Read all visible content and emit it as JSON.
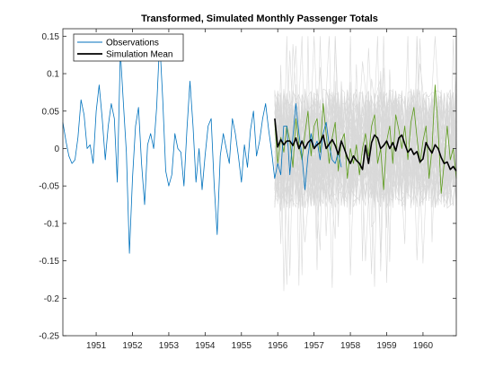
{
  "chart_data": {
    "type": "line",
    "title": "Transformed, Simulated Monthly Passenger Totals",
    "xlabel": "",
    "ylabel": "",
    "xlim": [
      1950.083,
      1960.917
    ],
    "ylim": [
      -0.25,
      0.16
    ],
    "x_ticks": [
      1951,
      1952,
      1953,
      1954,
      1955,
      1956,
      1957,
      1958,
      1959,
      1960
    ],
    "x_tick_labels": [
      "1951",
      "1952",
      "1953",
      "1954",
      "1955",
      "1956",
      "1957",
      "1958",
      "1959",
      "1960"
    ],
    "y_ticks": [
      -0.25,
      -0.2,
      -0.15,
      -0.1,
      -0.05,
      0,
      0.05,
      0.1,
      0.15
    ],
    "y_tick_labels": [
      "-0.25",
      "-0.2",
      "-0.15",
      "-0.1",
      "-0.05",
      "0",
      "0.05",
      "0.1",
      "0.15"
    ],
    "grid": false,
    "legend_position": "top-left",
    "legend": [
      "Observations",
      "Simulation Mean"
    ],
    "colors": {
      "observations": "#0072BD",
      "simulation_mean": "#000000",
      "simulations": "#D9D9D9",
      "highlighted_simulation": "#5B9A1A"
    },
    "series": [
      {
        "name": "Observations",
        "x_start": 1950.083,
        "x_step": 0.0833333,
        "values": [
          0.035,
          0.01,
          -0.01,
          -0.02,
          -0.015,
          0.015,
          0.065,
          0.045,
          0.0,
          0.005,
          -0.02,
          0.05,
          0.085,
          0.04,
          -0.015,
          0.03,
          0.06,
          0.04,
          -0.045,
          0.13,
          0.06,
          -0.005,
          -0.14,
          -0.04,
          0.03,
          0.055,
          -0.02,
          -0.075,
          0.005,
          0.02,
          0.0,
          0.055,
          0.145,
          0.065,
          -0.03,
          -0.05,
          -0.035,
          0.02,
          0.0,
          -0.005,
          -0.05,
          0.025,
          0.09,
          0.03,
          -0.045,
          0.0,
          -0.055,
          -0.01,
          0.03,
          0.04,
          -0.05,
          -0.115,
          -0.01,
          0.02,
          0.0,
          -0.02,
          0.04,
          0.02,
          -0.01,
          -0.045,
          0.005,
          -0.025,
          0.025,
          0.05,
          -0.01,
          0.01,
          0.04,
          0.06,
          0.025,
          -0.005,
          -0.04,
          -0.02,
          -0.035,
          0.03,
          0.03,
          -0.035,
          0.015,
          0.06,
          0.02,
          -0.01,
          -0.055,
          -0.01,
          0.02,
          0.0,
          0.01,
          -0.015,
          0.02,
          0.035,
          0.005,
          -0.015,
          -0.02,
          -0.005,
          -0.025
        ]
      },
      {
        "name": "Simulation Mean",
        "x_start": 1955.917,
        "x_step": 0.0833333,
        "values": [
          0.04,
          0.002,
          0.012,
          0.005,
          0.01,
          0.01,
          0.004,
          0.014,
          0.0,
          0.01,
          0.0,
          0.008,
          0.012,
          0.0,
          0.005,
          0.008,
          0.018,
          0.0,
          0.006,
          0.012,
          0.004,
          -0.008,
          0.01,
          0.0,
          -0.012,
          -0.02,
          -0.01,
          -0.016,
          -0.02,
          -0.028,
          0.004,
          -0.02,
          0.008,
          0.018,
          0.014,
          0.0,
          0.004,
          0.01,
          0.0,
          0.008,
          -0.003,
          0.014,
          0.018,
          0.006,
          -0.005,
          0.0,
          -0.008,
          -0.004,
          -0.018,
          -0.014,
          0.008,
          0.0,
          -0.006,
          0.005,
          0.0,
          -0.012,
          -0.02,
          -0.018,
          -0.028,
          -0.024,
          -0.03
        ]
      },
      {
        "name": "",
        "x_start": 1955.917,
        "x_step": 0.0833333,
        "values": [
          0.035,
          -0.02,
          0.015,
          -0.005,
          0.03,
          0.01,
          -0.025,
          0.04,
          0.005,
          -0.015,
          0.02,
          0.05,
          -0.01,
          0.03,
          0.04,
          -0.005,
          0.06,
          0.02,
          -0.02,
          0.015,
          0.035,
          -0.03,
          0.01,
          0.02,
          -0.04,
          0.0,
          -0.02,
          0.005,
          -0.035,
          0.0,
          0.02,
          -0.01,
          0.03,
          0.045,
          -0.02,
          0.0,
          -0.055,
          0.01,
          0.03,
          -0.02,
          0.045,
          0.025,
          0.0,
          0.03,
          -0.015,
          0.035,
          0.055,
          0.015,
          -0.02,
          0.01,
          0.03,
          -0.04,
          0.0,
          0.085,
          0.025,
          -0.06,
          -0.02,
          0.03,
          -0.015,
          0.0,
          -0.04
        ]
      }
    ],
    "simulation_band": {
      "x_start": 1955.917,
      "x_step": 0.0833333,
      "min": -0.25,
      "max": 0.15,
      "typical_low": -0.08,
      "typical_high": 0.08
    }
  }
}
